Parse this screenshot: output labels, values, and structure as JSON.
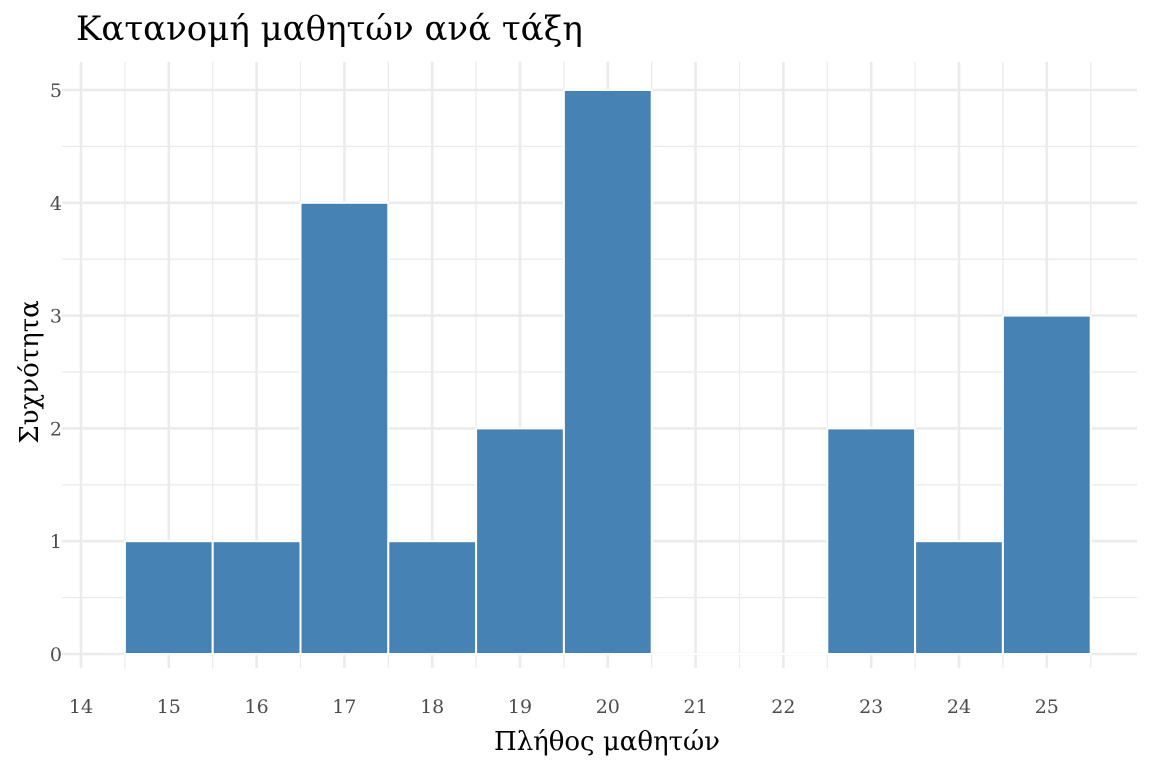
{
  "chart_data": {
    "type": "bar",
    "title": "Κατανομή μαθητών ανά τάξη",
    "xlabel": "Πλήθος μαθητών",
    "ylabel": "Συχνότητα",
    "x": [
      15,
      16,
      17,
      18,
      19,
      20,
      21,
      22,
      23,
      24,
      25
    ],
    "values": [
      1,
      1,
      4,
      1,
      2,
      5,
      0,
      0,
      2,
      1,
      3
    ],
    "bin_width": 1,
    "xlim": [
      14,
      26
    ],
    "ylim": [
      0,
      5.25
    ],
    "x_ticks": [
      "14",
      "15",
      "16",
      "17",
      "18",
      "19",
      "20",
      "21",
      "22",
      "23",
      "24",
      "25"
    ],
    "y_ticks": [
      "0",
      "1",
      "2",
      "3",
      "4",
      "5"
    ],
    "grid": true,
    "bar_color": "#4682b4",
    "bar_outline": "#ffffff",
    "background": "#ffffff",
    "grid_color": "#ebebeb"
  }
}
